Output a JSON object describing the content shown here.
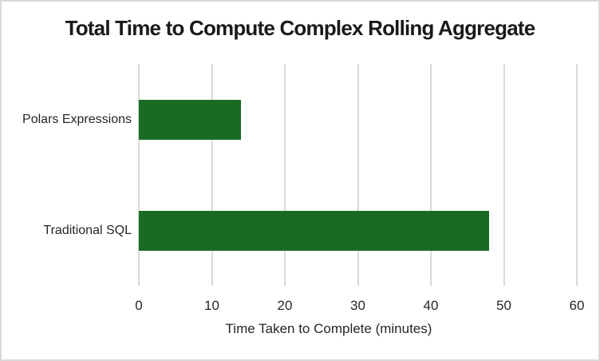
{
  "chart_data": {
    "type": "bar",
    "orientation": "horizontal",
    "title": "Total Time to Compute Complex Rolling Aggregate",
    "xlabel": "Time Taken to Complete (minutes)",
    "ylabel": "",
    "categories": [
      "Polars Expressions",
      "Traditional SQL"
    ],
    "values": [
      14,
      48
    ],
    "xlim": [
      0,
      60
    ],
    "xticks": [
      0,
      10,
      20,
      30,
      40,
      50,
      60
    ],
    "grid": "vertical",
    "legend": "none",
    "bar_color": "#196B24",
    "gridline_color": "#D9D9D9",
    "frame_color": "#D9D9D9",
    "title_color": "#1a1a1a",
    "label_color": "#262626",
    "background_color": "#ffffff"
  }
}
